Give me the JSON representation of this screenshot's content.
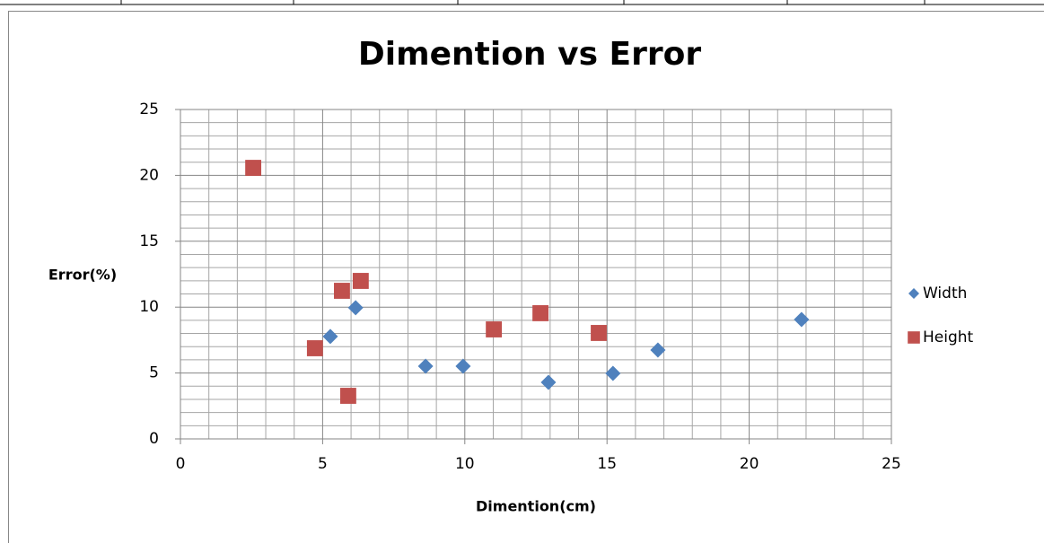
{
  "chart_data": {
    "type": "scatter",
    "title": "Dimention vs Error",
    "x_label": "Dimention(cm)",
    "y_label": "Error(%)",
    "xlim": [
      0,
      25
    ],
    "xticks": [
      0,
      5,
      10,
      15,
      20,
      25
    ],
    "ylim": [
      0,
      25
    ],
    "yticks": [
      0,
      5,
      10,
      15,
      20,
      25
    ],
    "grid": true,
    "minor_grid": true,
    "legend": "right",
    "series": [
      {
        "name": "Width",
        "color": "#4f81bd",
        "marker": "diamond",
        "x": [
          5.27,
          6.16,
          8.62,
          9.94,
          12.94,
          15.21,
          16.79,
          21.84
        ],
        "values": [
          7.77,
          9.95,
          5.52,
          5.52,
          4.29,
          4.97,
          6.74,
          9.06
        ]
      },
      {
        "name": "Height",
        "color": "#c0504d",
        "marker": "square",
        "x": [
          2.56,
          4.73,
          5.68,
          6.34,
          5.9,
          11.02,
          12.66,
          14.71
        ],
        "values": [
          20.57,
          6.88,
          11.24,
          11.99,
          3.27,
          8.31,
          9.54,
          8.04
        ]
      }
    ]
  }
}
